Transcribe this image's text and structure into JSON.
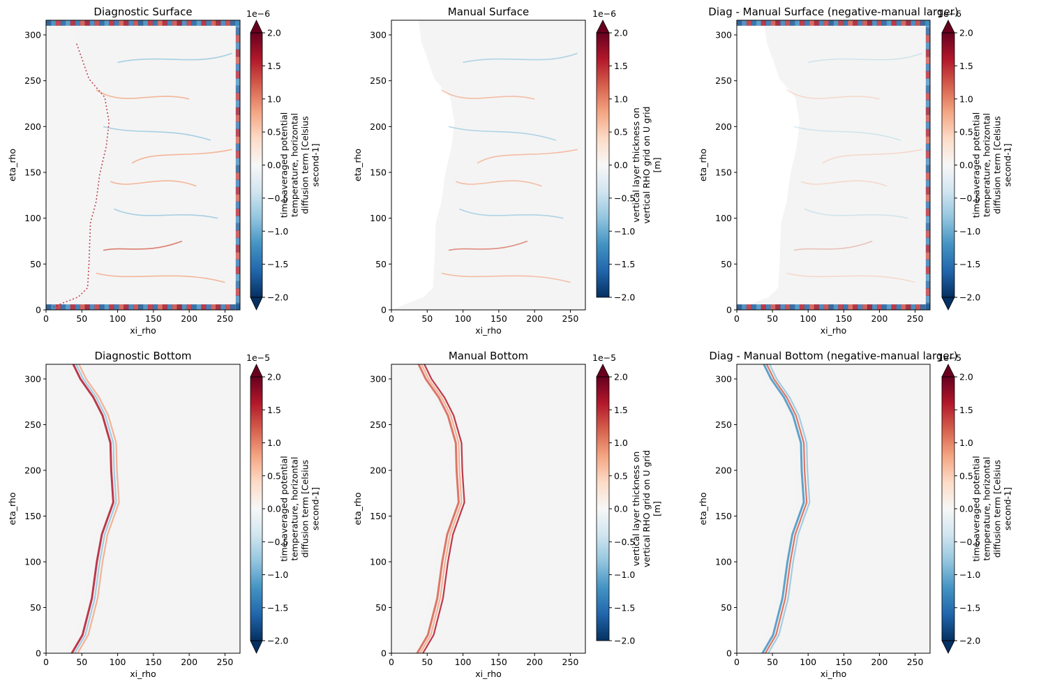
{
  "figure": {
    "panels": [
      {
        "title": "Diagnostic Surface",
        "xlabel": "xi_rho",
        "ylabel": "eta_rho",
        "colorbar_label": [
          "time-averaged potential",
          "temperature, horizontal",
          "diffusion term [Celsius",
          "second-1]"
        ],
        "scale_label": "1e−6",
        "extend": "both",
        "pattern": "surface_diag"
      },
      {
        "title": "Manual Surface",
        "xlabel": "xi_rho",
        "ylabel": "eta_rho",
        "colorbar_label": [
          "vertical layer thickness on",
          "vertical RHO grid on U grid",
          "[m]"
        ],
        "scale_label": "1e−6",
        "extend": "max",
        "pattern": "surface_manual"
      },
      {
        "title": "Diag - Manual Surface (negative-manual larger)",
        "xlabel": "xi_rho",
        "ylabel": "eta_rho",
        "colorbar_label": [
          "time-averaged potential",
          "temperature, horizontal",
          "diffusion term [Celsius",
          "second-1]"
        ],
        "scale_label": "1e−6",
        "extend": "both",
        "pattern": "surface_diff"
      },
      {
        "title": "Diagnostic Bottom",
        "xlabel": "xi_rho",
        "ylabel": "eta_rho",
        "colorbar_label": [
          "time-averaged potential",
          "temperature, horizontal",
          "diffusion term [Celsius",
          "second-1]"
        ],
        "scale_label": "1e−5",
        "extend": "both",
        "pattern": "bottom_diag"
      },
      {
        "title": "Manual Bottom",
        "xlabel": "xi_rho",
        "ylabel": "eta_rho",
        "colorbar_label": [
          "vertical layer thickness on",
          "vertical RHO grid on U grid",
          "[m]"
        ],
        "scale_label": "1e−5",
        "extend": "max",
        "pattern": "bottom_manual"
      },
      {
        "title": "Diag - Manual Bottom (negative-manual larger)",
        "xlabel": "xi_rho",
        "ylabel": "eta_rho",
        "colorbar_label": [
          "time-averaged potential",
          "temperature, horizontal",
          "diffusion term [Celsius",
          "second-1]"
        ],
        "scale_label": "1e−5",
        "extend": "both",
        "pattern": "bottom_diff"
      }
    ]
  },
  "chart_data": [
    {
      "type": "heatmap",
      "title": "Diagnostic Surface",
      "xlabel": "xi_rho",
      "ylabel": "eta_rho",
      "xlim": [
        0,
        271
      ],
      "ylim": [
        0,
        316
      ],
      "xticks": [
        "0",
        "50",
        "100",
        "150",
        "200",
        "250"
      ],
      "yticks": [
        "0",
        "50",
        "100",
        "150",
        "200",
        "250",
        "300"
      ],
      "colorbar": {
        "vmin": -2e-06,
        "vmax": 2e-06,
        "ticks": [
          "−2.0",
          "−1.5",
          "−1.0",
          "−0.5",
          "0.0",
          "0.5",
          "1.0",
          "1.5",
          "2.0"
        ],
        "scale": "1e−6",
        "cmap": "RdBu_r"
      }
    },
    {
      "type": "heatmap",
      "title": "Manual Surface",
      "xlabel": "xi_rho",
      "ylabel": "eta_rho",
      "xlim": [
        0,
        271
      ],
      "ylim": [
        0,
        316
      ],
      "xticks": [
        "0",
        "50",
        "100",
        "150",
        "200",
        "250"
      ],
      "yticks": [
        "0",
        "50",
        "100",
        "150",
        "200",
        "250",
        "300"
      ],
      "colorbar": {
        "vmin": -2e-06,
        "vmax": 2e-06,
        "ticks": [
          "−2.0",
          "−1.5",
          "−1.0",
          "−0.5",
          "0.0",
          "0.5",
          "1.0",
          "1.5",
          "2.0"
        ],
        "scale": "1e−6",
        "cmap": "RdBu_r"
      }
    },
    {
      "type": "heatmap",
      "title": "Diag - Manual Surface (negative-manual larger)",
      "xlabel": "xi_rho",
      "ylabel": "eta_rho",
      "xlim": [
        0,
        271
      ],
      "ylim": [
        0,
        316
      ],
      "xticks": [
        "0",
        "50",
        "100",
        "150",
        "200",
        "250"
      ],
      "yticks": [
        "0",
        "50",
        "100",
        "150",
        "200",
        "250",
        "300"
      ],
      "colorbar": {
        "vmin": -2e-06,
        "vmax": 2e-06,
        "ticks": [
          "−2.0",
          "−1.5",
          "−1.0",
          "−0.5",
          "0.0",
          "0.5",
          "1.0",
          "1.5",
          "2.0"
        ],
        "scale": "1e−6",
        "cmap": "RdBu_r"
      }
    },
    {
      "type": "heatmap",
      "title": "Diagnostic Bottom",
      "xlabel": "xi_rho",
      "ylabel": "eta_rho",
      "xlim": [
        0,
        271
      ],
      "ylim": [
        0,
        316
      ],
      "xticks": [
        "0",
        "50",
        "100",
        "150",
        "200",
        "250"
      ],
      "yticks": [
        "0",
        "50",
        "100",
        "150",
        "200",
        "250",
        "300"
      ],
      "colorbar": {
        "vmin": -2e-05,
        "vmax": 2e-05,
        "ticks": [
          "−2.0",
          "−1.5",
          "−1.0",
          "−0.5",
          "0.0",
          "0.5",
          "1.0",
          "1.5",
          "2.0"
        ],
        "scale": "1e−5",
        "cmap": "RdBu_r"
      }
    },
    {
      "type": "heatmap",
      "title": "Manual Bottom",
      "xlabel": "xi_rho",
      "ylabel": "eta_rho",
      "xlim": [
        0,
        271
      ],
      "ylim": [
        0,
        316
      ],
      "xticks": [
        "0",
        "50",
        "100",
        "150",
        "200",
        "250"
      ],
      "yticks": [
        "0",
        "50",
        "100",
        "150",
        "200",
        "250",
        "300"
      ],
      "colorbar": {
        "vmin": -2e-05,
        "vmax": 2e-05,
        "ticks": [
          "−2.0",
          "−1.5",
          "−1.0",
          "−0.5",
          "0.0",
          "0.5",
          "1.0",
          "1.5",
          "2.0"
        ],
        "scale": "1e−5",
        "cmap": "RdBu_r"
      }
    },
    {
      "type": "heatmap",
      "title": "Diag - Manual Bottom (negative-manual larger)",
      "xlabel": "xi_rho",
      "ylabel": "eta_rho",
      "xlim": [
        0,
        271
      ],
      "ylim": [
        0,
        316
      ],
      "xticks": [
        "0",
        "50",
        "100",
        "150",
        "200",
        "250"
      ],
      "yticks": [
        "0",
        "50",
        "100",
        "150",
        "200",
        "250",
        "300"
      ],
      "colorbar": {
        "vmin": -2e-05,
        "vmax": 2e-05,
        "ticks": [
          "−2.0",
          "−1.5",
          "−1.0",
          "−0.5",
          "0.0",
          "0.5",
          "1.0",
          "1.5",
          "2.0"
        ],
        "scale": "1e−5",
        "cmap": "RdBu_r"
      }
    }
  ]
}
